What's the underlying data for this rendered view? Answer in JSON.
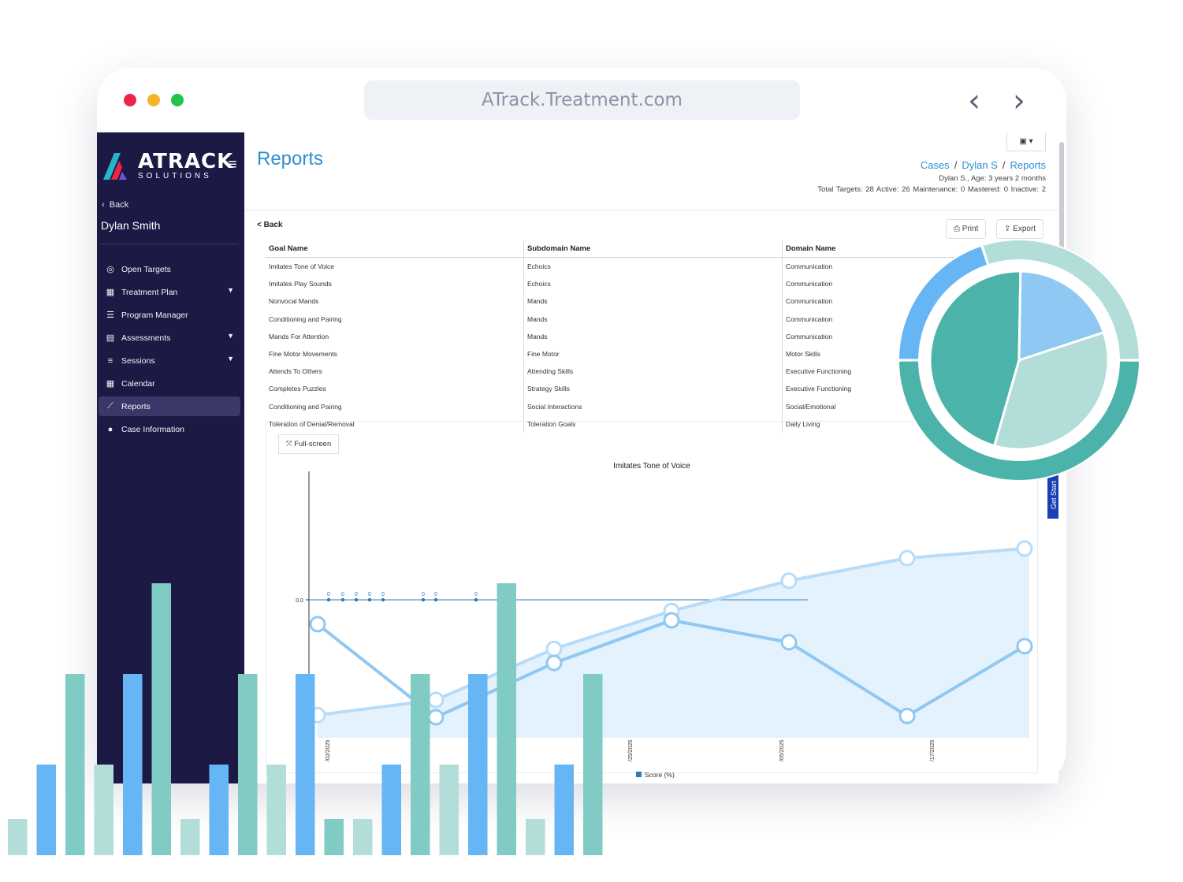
{
  "browser": {
    "url": "ATrack.Treatment.com",
    "window_dot_colors": [
      "#e8264a",
      "#f5b52a",
      "#21c34a"
    ]
  },
  "sidebar": {
    "logo_main": "ATRACK",
    "logo_sub": "SOLUTIONS",
    "back_label": "Back",
    "user_name": "Dylan Smith",
    "items": [
      {
        "label": "Open Targets",
        "icon": "target-icon",
        "active": false,
        "has_chevron": false
      },
      {
        "label": "Treatment Plan",
        "icon": "table-icon",
        "active": false,
        "has_chevron": true
      },
      {
        "label": "Program Manager",
        "icon": "list-icon",
        "active": false,
        "has_chevron": false
      },
      {
        "label": "Assessments",
        "icon": "clipboard-icon",
        "active": false,
        "has_chevron": true
      },
      {
        "label": "Sessions",
        "icon": "edit-list-icon",
        "active": false,
        "has_chevron": true
      },
      {
        "label": "Calendar",
        "icon": "calendar-icon",
        "active": false,
        "has_chevron": false
      },
      {
        "label": "Reports",
        "icon": "line-chart-icon",
        "active": true,
        "has_chevron": false
      },
      {
        "label": "Case Information",
        "icon": "person-icon",
        "active": false,
        "has_chevron": false
      }
    ]
  },
  "header": {
    "title": "Reports",
    "breadcrumb": [
      "Cases",
      "Dylan S",
      "Reports"
    ],
    "patient_info": "Dylan S., Age: 3 years 2 months",
    "target_stats": "Total Targets: 28   Active: 26   Maintenance: 0   Mastered: 0   Inactive: 2"
  },
  "report": {
    "back_label": "Back",
    "print_label": "Print",
    "export_label": "Export",
    "columns": [
      "Goal Name",
      "Subdomain Name",
      "Domain Name"
    ],
    "rows": [
      [
        "Imitates Tone of Voice",
        "Echoics",
        "Communication"
      ],
      [
        "Imitates Play Sounds",
        "Echoics",
        "Communication"
      ],
      [
        "Nonvocal Mands",
        "Mands",
        "Communication"
      ],
      [
        "Conditioning and Pairing",
        "Mands",
        "Communication"
      ],
      [
        "Mands For Attention",
        "Mands",
        "Communication"
      ],
      [
        "Fine Motor Movements",
        "Fine Motor",
        "Motor Skills"
      ],
      [
        "Attends To Others",
        "Attending Skills",
        "Executive Functioning"
      ],
      [
        "Completes Puzzles",
        "Strategy Skills",
        "Executive Functioning"
      ],
      [
        "Conditioning and Pairing",
        "Social Interactions",
        "Social/Emotional"
      ],
      [
        "Toleration of Denial/Removal",
        "Toleration Goals",
        "Daily Living"
      ]
    ],
    "fullscreen_label": "Full-screen",
    "get_started_label": "Get Start"
  },
  "chart_data": {
    "type": "line",
    "title": "Imitates Tone of Voice",
    "ytick": "0.0",
    "point_labels": [
      "0",
      "0",
      "0",
      "0",
      "0",
      "0",
      "0",
      "0"
    ],
    "x_tick_labels": [
      "/02/2025",
      "/25/2025",
      "/05/2025",
      "/17/2025"
    ],
    "legend": "Score (%)",
    "series": [
      {
        "name": "Score (%)",
        "values": [
          0,
          0,
          0,
          0,
          0,
          0,
          0,
          0
        ]
      }
    ]
  },
  "decor": {
    "colors": {
      "teal": "#4cb3aa",
      "light_teal": "#b2ddd9",
      "blue": "#66b5f5",
      "mid_teal": "#80cbc4",
      "sidebar": "#1c1a45",
      "accent": "#2f8fd1"
    },
    "pie_fractions": [
      0.458,
      0.197,
      0.345
    ],
    "ring_fractions": [
      0.5,
      0.2,
      0.3
    ],
    "area_series": [
      0.12,
      0.2,
      0.47,
      0.67,
      0.83,
      0.95,
      1.0
    ],
    "line_series": [
      0.72,
      0.0,
      0.42,
      0.75,
      0.58,
      0.01,
      0.55
    ],
    "bars": [
      {
        "value": 0.2,
        "color": "#b2ddd9"
      },
      {
        "value": 0.5,
        "color": "#66b5f5"
      },
      {
        "value": 1.0,
        "color": "#80cbc4"
      },
      {
        "value": 0.5,
        "color": "#b2ddd9"
      },
      {
        "value": 1.0,
        "color": "#66b5f5"
      },
      {
        "value": 1.5,
        "color": "#80cbc4"
      },
      {
        "value": 0.2,
        "color": "#b2ddd9"
      },
      {
        "value": 0.5,
        "color": "#66b5f5"
      },
      {
        "value": 1.0,
        "color": "#80cbc4"
      },
      {
        "value": 0.5,
        "color": "#b2ddd9"
      },
      {
        "value": 1.0,
        "color": "#66b5f5"
      },
      {
        "value": 0.2,
        "color": "#80cbc4"
      },
      {
        "value": 0.2,
        "color": "#b2ddd9"
      },
      {
        "value": 0.5,
        "color": "#66b5f5"
      },
      {
        "value": 1.0,
        "color": "#80cbc4"
      },
      {
        "value": 0.5,
        "color": "#b2ddd9"
      },
      {
        "value": 1.0,
        "color": "#66b5f5"
      },
      {
        "value": 1.5,
        "color": "#80cbc4"
      },
      {
        "value": 0.2,
        "color": "#b2ddd9"
      },
      {
        "value": 0.5,
        "color": "#66b5f5"
      },
      {
        "value": 1.0,
        "color": "#80cbc4"
      }
    ]
  }
}
